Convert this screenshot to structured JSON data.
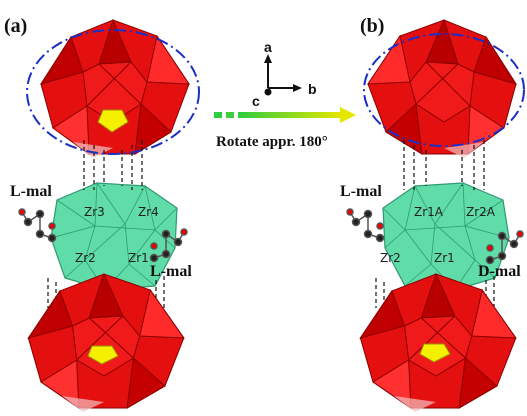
{
  "panels": [
    {
      "label": "(a)",
      "mal_top": "L-mal",
      "mal_bottom": "L-mal",
      "zr_top_left": "Zr3",
      "zr_top_right": "Zr4",
      "zr_bottom_left": "Zr2",
      "zr_bottom_right": "Zr1"
    },
    {
      "label": "(b)",
      "mal_top": "L-mal",
      "mal_bottom": "D-mal",
      "zr_top_left": "Zr1A",
      "zr_top_right": "Zr2A",
      "zr_bottom_left": "Zr2",
      "zr_bottom_right": "Zr1"
    }
  ],
  "axes": {
    "a": "a",
    "b": "b",
    "c": "c"
  },
  "arrow_caption": "Rotate appr. 180°"
}
